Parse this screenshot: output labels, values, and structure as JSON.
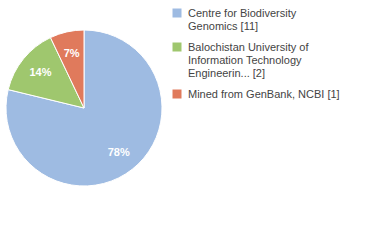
{
  "chart_data": {
    "type": "pie",
    "categories": [
      "Centre for Biodiversity Genomics [11]",
      "Balochistan University of Information Technology Engineerin... [2]",
      "Mined from GenBank, NCBI [1]"
    ],
    "values": [
      78,
      14,
      7
    ],
    "value_labels": [
      "78%",
      "14%",
      "7%"
    ],
    "colors": [
      "#9ebbe2",
      "#9fc76e",
      "#e07a5c"
    ],
    "data_labels": true,
    "legend": "top-right"
  }
}
